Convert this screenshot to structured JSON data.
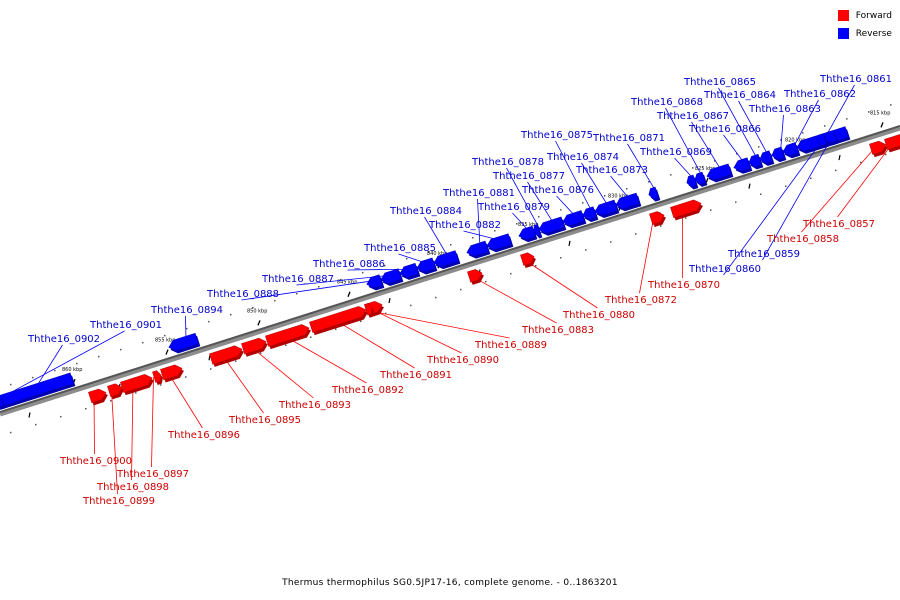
{
  "legend": {
    "forward_label": "Forward",
    "reverse_label": "Reverse",
    "forward_color": "#ff0000",
    "reverse_color": "#0000ff"
  },
  "caption": "Thermus thermophilus SG0.5JP17-16, complete genome. - 0..1863201",
  "ticks": [
    "815 kbp",
    "820 kbp",
    "825 kbp",
    "830 kbp",
    "835 kbp",
    "840 kbp",
    "845 kbp",
    "850 kbp",
    "855 kbp",
    "860 kbp"
  ],
  "genes": [
    {
      "id": "Ththe16_0902",
      "strand": "reverse"
    },
    {
      "id": "Ththe16_0901",
      "strand": "reverse"
    },
    {
      "id": "Ththe16_0900",
      "strand": "forward"
    },
    {
      "id": "Ththe16_0899",
      "strand": "forward"
    },
    {
      "id": "Ththe16_0898",
      "strand": "forward"
    },
    {
      "id": "Ththe16_0897",
      "strand": "forward"
    },
    {
      "id": "Ththe16_0896",
      "strand": "forward"
    },
    {
      "id": "Ththe16_0895",
      "strand": "forward"
    },
    {
      "id": "Ththe16_0894",
      "strand": "reverse"
    },
    {
      "id": "Ththe16_0893",
      "strand": "forward"
    },
    {
      "id": "Ththe16_0892",
      "strand": "forward"
    },
    {
      "id": "Ththe16_0891",
      "strand": "forward"
    },
    {
      "id": "Ththe16_0890",
      "strand": "forward"
    },
    {
      "id": "Ththe16_0889",
      "strand": "forward"
    },
    {
      "id": "Ththe16_0888",
      "strand": "reverse"
    },
    {
      "id": "Ththe16_0887",
      "strand": "reverse"
    },
    {
      "id": "Ththe16_0886",
      "strand": "reverse"
    },
    {
      "id": "Ththe16_0885",
      "strand": "reverse"
    },
    {
      "id": "Ththe16_0884",
      "strand": "reverse"
    },
    {
      "id": "Ththe16_0883",
      "strand": "forward"
    },
    {
      "id": "Ththe16_0882",
      "strand": "reverse"
    },
    {
      "id": "Ththe16_0881",
      "strand": "reverse"
    },
    {
      "id": "Ththe16_0880",
      "strand": "forward"
    },
    {
      "id": "Ththe16_0879",
      "strand": "reverse"
    },
    {
      "id": "Ththe16_0878",
      "strand": "reverse"
    },
    {
      "id": "Ththe16_0877",
      "strand": "reverse"
    },
    {
      "id": "Ththe16_0876",
      "strand": "reverse"
    },
    {
      "id": "Ththe16_0875",
      "strand": "reverse"
    },
    {
      "id": "Ththe16_0874",
      "strand": "reverse"
    },
    {
      "id": "Ththe16_0873",
      "strand": "reverse"
    },
    {
      "id": "Ththe16_0872",
      "strand": "forward"
    },
    {
      "id": "Ththe16_0871",
      "strand": "reverse"
    },
    {
      "id": "Ththe16_0870",
      "strand": "forward"
    },
    {
      "id": "Ththe16_0869",
      "strand": "reverse"
    },
    {
      "id": "Ththe16_0868",
      "strand": "reverse"
    },
    {
      "id": "Ththe16_0867",
      "strand": "reverse"
    },
    {
      "id": "Ththe16_0866",
      "strand": "reverse"
    },
    {
      "id": "Ththe16_0865",
      "strand": "reverse"
    },
    {
      "id": "Ththe16_0864",
      "strand": "reverse"
    },
    {
      "id": "Ththe16_0863",
      "strand": "reverse"
    },
    {
      "id": "Ththe16_0862",
      "strand": "reverse"
    },
    {
      "id": "Ththe16_0861",
      "strand": "reverse"
    },
    {
      "id": "Ththe16_0860",
      "strand": "reverse"
    },
    {
      "id": "Ththe16_0859",
      "strand": "reverse"
    },
    {
      "id": "Ththe16_0858",
      "strand": "forward"
    },
    {
      "id": "Ththe16_0857",
      "strand": "forward"
    }
  ]
}
